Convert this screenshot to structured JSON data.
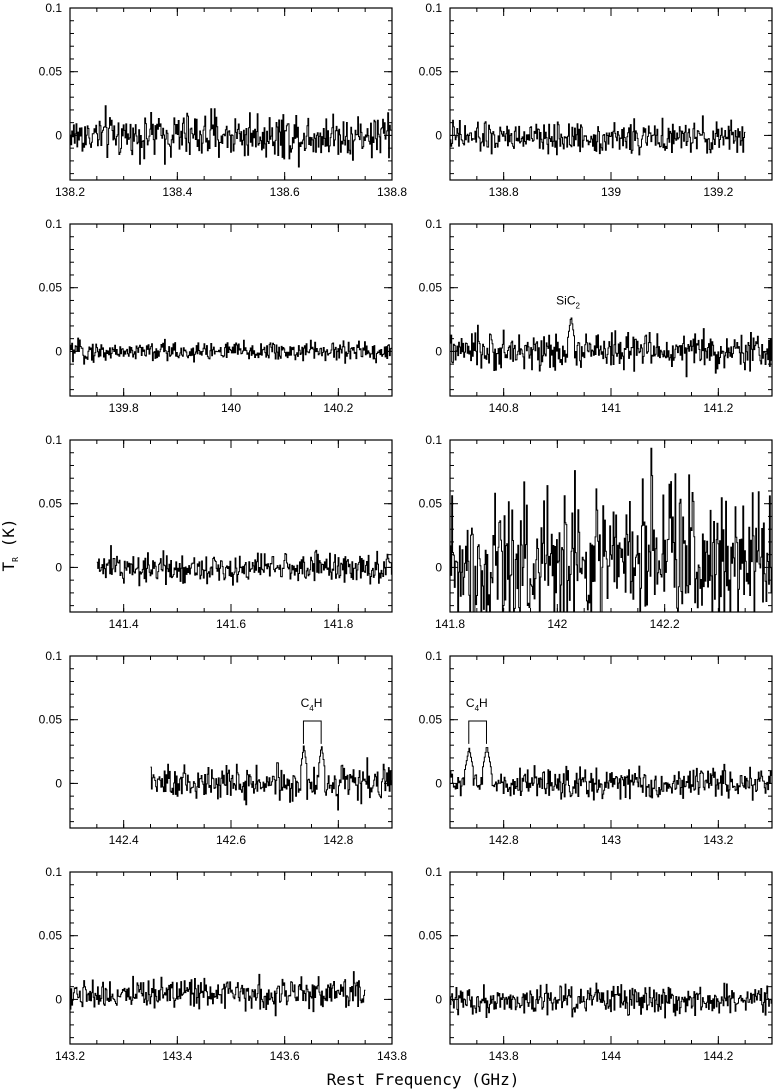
{
  "chart_data": {
    "type": "line",
    "ylabel": "T",
    "ylabel_sub": "R",
    "ylabel_unit": " (K)",
    "xlabel": "Rest Frequency (GHz)",
    "ylim": [
      -0.035,
      0.1
    ],
    "yticks": [
      {
        "v": 0.1,
        "t": "0.1"
      },
      {
        "v": 0.05,
        "t": "0.05"
      },
      {
        "v": 0,
        "t": "0"
      }
    ],
    "panels": [
      {
        "xlim": [
          138.2,
          138.8
        ],
        "xticks": [
          {
            "v": 138.2,
            "t": "138.2"
          },
          {
            "v": 138.4,
            "t": "138.4"
          },
          {
            "v": 138.6,
            "t": "138.6"
          },
          {
            "v": 138.8,
            "t": "138.8"
          }
        ],
        "data_range": [
          138.2,
          138.8
        ],
        "noise": 0.009,
        "offset": 0.0,
        "spikes": [],
        "annotations": []
      },
      {
        "xlim": [
          138.7,
          139.3
        ],
        "xticks": [
          {
            "v": 138.8,
            "t": "138.8"
          },
          {
            "v": 139.0,
            "t": "139"
          },
          {
            "v": 139.2,
            "t": "139.2"
          }
        ],
        "data_range": [
          138.7,
          139.25
        ],
        "noise": 0.006,
        "offset": -0.002,
        "spikes": [],
        "annotations": []
      },
      {
        "xlim": [
          139.7,
          140.3
        ],
        "xticks": [
          {
            "v": 139.8,
            "t": "139.8"
          },
          {
            "v": 140.0,
            "t": "140"
          },
          {
            "v": 140.2,
            "t": "140.2"
          }
        ],
        "data_range": [
          139.7,
          140.3
        ],
        "noise": 0.004,
        "offset": 0.0,
        "spikes": [],
        "annotations": []
      },
      {
        "xlim": [
          140.7,
          141.3
        ],
        "xticks": [
          {
            "v": 140.8,
            "t": "140.8"
          },
          {
            "v": 141.0,
            "t": "141"
          },
          {
            "v": 141.2,
            "t": "141.2"
          }
        ],
        "data_range": [
          140.7,
          141.3
        ],
        "noise": 0.007,
        "offset": 0.0,
        "spikes": [
          {
            "x": 140.925,
            "y": 0.028,
            "w": 0.006
          }
        ],
        "annotations": [
          {
            "label": "SiC",
            "sub": "2",
            "x": 140.92,
            "y": 0.037,
            "bracket": null
          }
        ]
      },
      {
        "xlim": [
          141.3,
          141.9
        ],
        "xticks": [
          {
            "v": 141.4,
            "t": "141.4"
          },
          {
            "v": 141.6,
            "t": "141.6"
          },
          {
            "v": 141.8,
            "t": "141.8"
          }
        ],
        "data_range": [
          141.35,
          141.9
        ],
        "noise": 0.006,
        "offset": 0.0,
        "spikes": [],
        "annotations": []
      },
      {
        "xlim": [
          141.8,
          142.4
        ],
        "xticks": [
          {
            "v": 141.8,
            "t": "141.8"
          },
          {
            "v": 142.0,
            "t": "142"
          },
          {
            "v": 142.2,
            "t": "142.2"
          }
        ],
        "data_range": [
          141.8,
          142.4
        ],
        "noise": 0.03,
        "offset": 0.005,
        "spikes": [],
        "annotations": []
      },
      {
        "xlim": [
          142.3,
          142.9
        ],
        "xticks": [
          {
            "v": 142.4,
            "t": "142.4"
          },
          {
            "v": 142.6,
            "t": "142.6"
          },
          {
            "v": 142.8,
            "t": "142.8"
          }
        ],
        "data_range": [
          142.45,
          142.9
        ],
        "noise": 0.007,
        "offset": 0.0,
        "spikes": [
          {
            "x": 142.735,
            "y": 0.03,
            "w": 0.006
          },
          {
            "x": 142.768,
            "y": 0.03,
            "w": 0.006
          }
        ],
        "annotations": [
          {
            "label": "C",
            "sub": "4",
            "suffix": "H",
            "x": 142.75,
            "y": 0.06,
            "bracket": [
              142.735,
              142.768,
              0.049
            ]
          }
        ]
      },
      {
        "xlim": [
          142.7,
          143.3
        ],
        "xticks": [
          {
            "v": 142.8,
            "t": "142.8"
          },
          {
            "v": 143.0,
            "t": "143"
          },
          {
            "v": 143.2,
            "t": "143.2"
          }
        ],
        "data_range": [
          142.7,
          143.3
        ],
        "noise": 0.006,
        "offset": 0.0,
        "spikes": [
          {
            "x": 142.735,
            "y": 0.028,
            "w": 0.008
          },
          {
            "x": 142.768,
            "y": 0.03,
            "w": 0.008
          }
        ],
        "annotations": [
          {
            "label": "C",
            "sub": "4",
            "suffix": "H",
            "x": 142.75,
            "y": 0.06,
            "bracket": [
              142.735,
              142.768,
              0.049
            ]
          }
        ]
      },
      {
        "xlim": [
          143.2,
          143.8
        ],
        "xticks": [
          {
            "v": 143.2,
            "t": "143.2"
          },
          {
            "v": 143.4,
            "t": "143.4"
          },
          {
            "v": 143.6,
            "t": "143.6"
          },
          {
            "v": 143.8,
            "t": "143.8"
          }
        ],
        "data_range": [
          143.2,
          143.75
        ],
        "noise": 0.006,
        "offset": 0.005,
        "spikes": [],
        "annotations": []
      },
      {
        "xlim": [
          143.7,
          144.3
        ],
        "xticks": [
          {
            "v": 143.8,
            "t": "143.8"
          },
          {
            "v": 144.0,
            "t": "144"
          },
          {
            "v": 144.2,
            "t": "144.2"
          }
        ],
        "data_range": [
          143.7,
          144.3
        ],
        "noise": 0.006,
        "offset": 0.0,
        "spikes": [],
        "annotations": []
      }
    ]
  }
}
